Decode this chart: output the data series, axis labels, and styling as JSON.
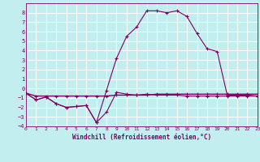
{
  "xlabel": "Windchill (Refroidissement éolien,°C)",
  "bg_color": "#c2eef0",
  "grid_color": "#b0dfe0",
  "line_color": "#800060",
  "xlim": [
    0,
    23
  ],
  "ylim": [
    -4,
    9
  ],
  "xticks": [
    0,
    1,
    2,
    3,
    4,
    5,
    6,
    7,
    8,
    9,
    10,
    11,
    12,
    13,
    14,
    15,
    16,
    17,
    18,
    19,
    20,
    21,
    22,
    23
  ],
  "yticks": [
    -4,
    -3,
    -2,
    -1,
    0,
    1,
    2,
    3,
    4,
    5,
    6,
    7,
    8
  ],
  "line1_x": [
    0,
    1,
    2,
    3,
    4,
    5,
    6,
    7,
    8,
    9,
    10,
    11,
    12,
    13,
    14,
    15,
    16,
    17,
    18,
    19,
    20,
    21,
    22,
    23
  ],
  "line1_y": [
    -0.5,
    -1.2,
    -0.9,
    -1.6,
    -2.0,
    -1.9,
    -1.8,
    -3.6,
    -2.5,
    -0.4,
    -0.6,
    -0.7,
    -0.6,
    -0.7,
    -0.7,
    -0.7,
    -0.8,
    -0.8,
    -0.8,
    -0.8,
    -0.8,
    -0.8,
    -0.8,
    -0.8
  ],
  "line2_x": [
    0,
    1,
    2,
    3,
    4,
    5,
    6,
    7,
    8,
    9,
    10,
    11,
    12,
    13,
    14,
    15,
    16,
    17,
    18,
    19,
    20,
    21,
    22,
    23
  ],
  "line2_y": [
    -0.5,
    -1.2,
    -0.9,
    -1.6,
    -2.0,
    -1.9,
    -1.8,
    -3.6,
    -0.2,
    3.2,
    5.5,
    6.5,
    8.2,
    8.2,
    8.0,
    8.2,
    7.6,
    5.8,
    4.2,
    3.9,
    -0.7,
    -0.7,
    -0.7,
    -0.8
  ],
  "line3_x": [
    0,
    1,
    2,
    3,
    4,
    5,
    6,
    7,
    8,
    9,
    10,
    11,
    12,
    13,
    14,
    15,
    16,
    17,
    18,
    19,
    20,
    21,
    22,
    23
  ],
  "line3_y": [
    -0.5,
    -0.8,
    -0.8,
    -0.8,
    -0.8,
    -0.8,
    -0.8,
    -0.8,
    -0.8,
    -0.7,
    -0.7,
    -0.7,
    -0.7,
    -0.6,
    -0.6,
    -0.6,
    -0.6,
    -0.6,
    -0.6,
    -0.6,
    -0.6,
    -0.6,
    -0.6,
    -0.6
  ]
}
